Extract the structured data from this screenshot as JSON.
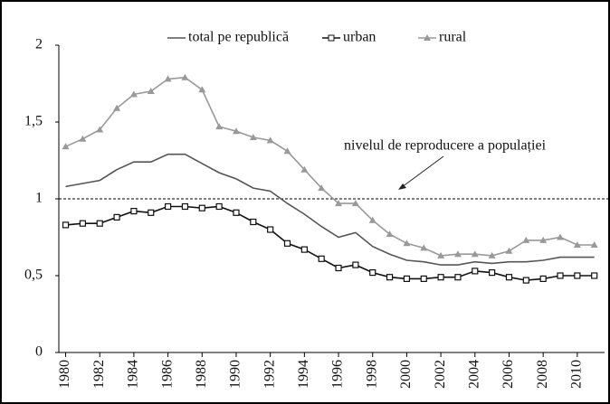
{
  "chart_data": {
    "type": "line",
    "x": [
      1980,
      1981,
      1982,
      1983,
      1984,
      1985,
      1986,
      1987,
      1988,
      1989,
      1990,
      1991,
      1992,
      1993,
      1994,
      1995,
      1996,
      1997,
      1998,
      1999,
      2000,
      2001,
      2002,
      2003,
      2004,
      2005,
      2006,
      2007,
      2008,
      2009,
      2010,
      2011
    ],
    "series": [
      {
        "name": "total pe republică",
        "color": "#555555",
        "marker": "none",
        "values": [
          1.08,
          1.1,
          1.12,
          1.19,
          1.24,
          1.24,
          1.29,
          1.29,
          1.23,
          1.17,
          1.13,
          1.07,
          1.05,
          0.97,
          0.9,
          0.82,
          0.75,
          0.78,
          0.69,
          0.64,
          0.6,
          0.59,
          0.57,
          0.57,
          0.59,
          0.58,
          0.59,
          0.59,
          0.6,
          0.62,
          0.62,
          0.62
        ]
      },
      {
        "name": "urban",
        "color": "#111111",
        "marker": "square",
        "values": [
          0.83,
          0.84,
          0.84,
          0.88,
          0.92,
          0.91,
          0.95,
          0.95,
          0.94,
          0.95,
          0.91,
          0.85,
          0.8,
          0.71,
          0.67,
          0.61,
          0.55,
          0.57,
          0.52,
          0.49,
          0.48,
          0.48,
          0.49,
          0.49,
          0.53,
          0.52,
          0.49,
          0.47,
          0.48,
          0.5,
          0.5,
          0.5
        ]
      },
      {
        "name": "rural",
        "color": "#999999",
        "marker": "triangle",
        "values": [
          1.34,
          1.39,
          1.45,
          1.59,
          1.68,
          1.7,
          1.78,
          1.79,
          1.71,
          1.47,
          1.44,
          1.4,
          1.38,
          1.31,
          1.19,
          1.07,
          0.97,
          0.97,
          0.86,
          0.77,
          0.71,
          0.68,
          0.63,
          0.64,
          0.64,
          0.63,
          0.66,
          0.73,
          0.73,
          0.75,
          0.7,
          0.7
        ]
      }
    ],
    "xlim": [
      1979.6,
      2011.6
    ],
    "xticks": [
      1980,
      1982,
      1984,
      1986,
      1988,
      1990,
      1992,
      1994,
      1996,
      1998,
      2000,
      2002,
      2004,
      2006,
      2008,
      2010
    ],
    "ylim": [
      0,
      2
    ],
    "yticks": [
      0,
      {
        "value": 0.5,
        "label": "0,5"
      },
      1,
      {
        "value": 1.5,
        "label": "1,5"
      },
      2
    ],
    "reference_line": {
      "value": 1,
      "label": "nivelul de reproducere a populației"
    },
    "legend": "top"
  }
}
